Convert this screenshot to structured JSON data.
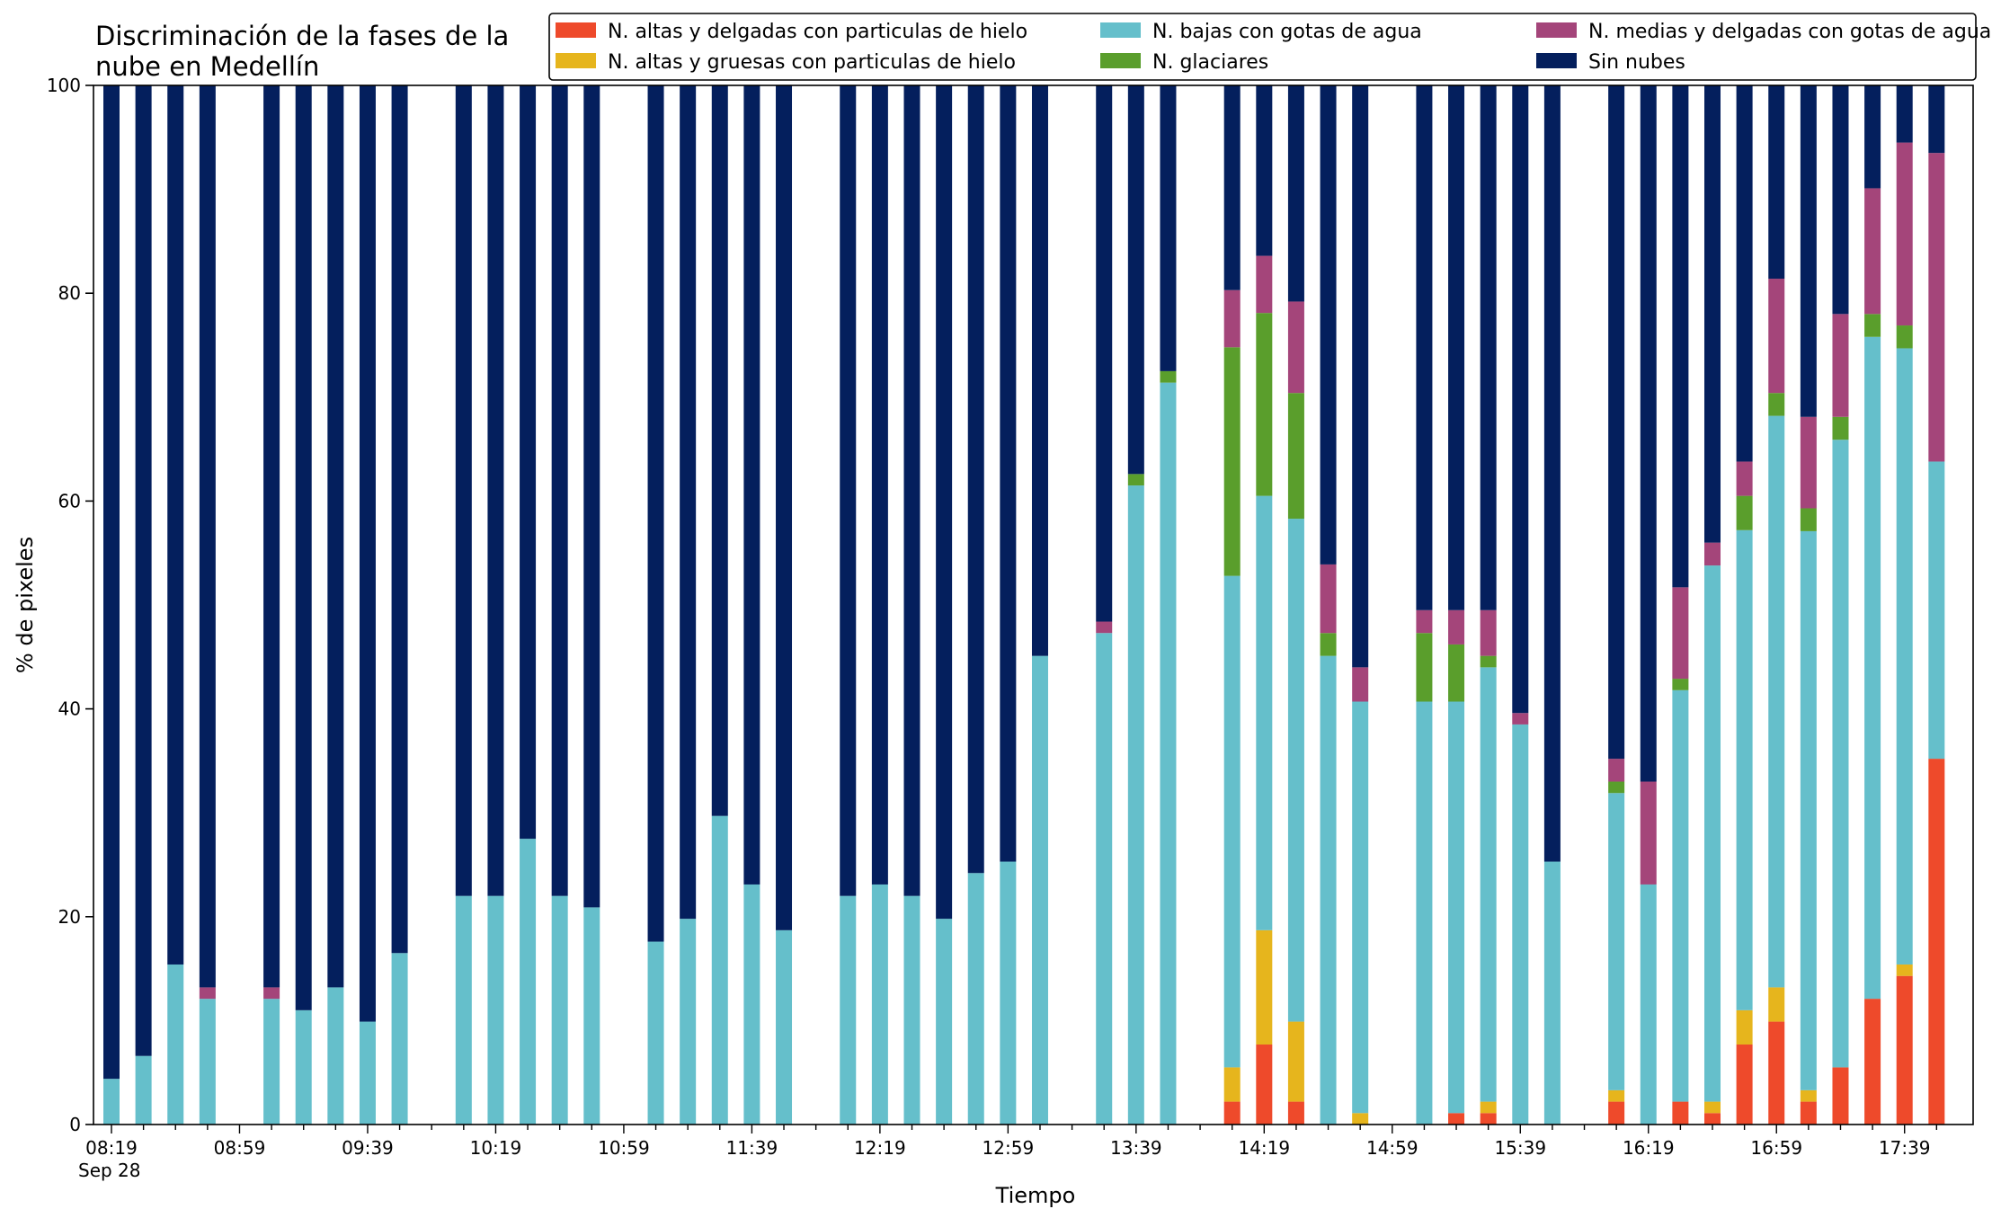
{
  "chart_data": {
    "type": "bar",
    "stacked": true,
    "title": "Discriminación de la fases de la nube en Medellín",
    "title_lines": [
      "Discriminación de la fases de la",
      "nube en Medellín"
    ],
    "xlabel": "Tiempo",
    "ylabel": "% de pixeles",
    "ylim": [
      0,
      100
    ],
    "yticks": [
      0,
      20,
      40,
      60,
      80,
      100
    ],
    "x_start": "08:19",
    "x_step_minutes": 10,
    "x_count": 58,
    "xtick_labels": [
      "08:19",
      "08:59",
      "09:39",
      "10:19",
      "10:59",
      "11:39",
      "12:19",
      "12:59",
      "13:39",
      "14:19",
      "14:59",
      "15:39",
      "16:19",
      "16:59",
      "17:39"
    ],
    "xtick_sublabel": "Sep 28",
    "legend_position": "top",
    "grid": false,
    "series": [
      {
        "name": "N. altas y delgadas con particulas de hielo",
        "color": "#ee4a2b",
        "values": [
          0,
          0,
          0,
          0,
          null,
          0,
          0,
          0,
          0,
          0,
          null,
          0,
          0,
          0,
          0,
          0,
          null,
          0,
          0,
          0,
          0,
          0,
          null,
          0,
          0,
          0,
          0,
          0,
          0,
          0,
          null,
          0,
          0,
          0,
          null,
          2.2,
          7.7,
          2.2,
          0,
          0,
          null,
          0,
          1.1,
          1.1,
          0,
          0,
          null,
          2.2,
          0,
          2.2,
          1.1,
          7.7,
          9.9,
          2.2,
          5.5,
          12.1,
          14.3,
          35.2
        ]
      },
      {
        "name": "N. altas y gruesas con particulas de hielo",
        "color": "#e6b51d",
        "values": [
          0,
          0,
          0,
          0,
          null,
          0,
          0,
          0,
          0,
          0,
          null,
          0,
          0,
          0,
          0,
          0,
          null,
          0,
          0,
          0,
          0,
          0,
          null,
          0,
          0,
          0,
          0,
          0,
          0,
          0,
          null,
          0,
          0,
          0,
          null,
          3.3,
          11,
          7.7,
          0,
          1.1,
          null,
          0,
          0,
          1.1,
          0,
          0,
          null,
          1.1,
          0,
          0,
          1.1,
          3.3,
          3.3,
          1.1,
          0,
          0,
          1.1,
          0
        ]
      },
      {
        "name": "N. bajas con gotas de agua",
        "color": "#65bfcb",
        "values": [
          4.4,
          6.6,
          15.4,
          12.1,
          null,
          12.1,
          11,
          13.2,
          9.9,
          16.5,
          null,
          22,
          22,
          27.5,
          22,
          20.9,
          null,
          17.6,
          19.8,
          29.7,
          23.1,
          18.7,
          null,
          22,
          23.1,
          22,
          19.8,
          24.2,
          25.3,
          45.1,
          null,
          47.3,
          61.5,
          71.4,
          null,
          47.3,
          41.8,
          48.4,
          45.1,
          39.6,
          null,
          40.7,
          39.6,
          41.8,
          38.5,
          25.3,
          null,
          28.6,
          23.1,
          39.6,
          51.6,
          46.2,
          55,
          53.8,
          60.4,
          63.7,
          59.3,
          28.6
        ]
      },
      {
        "name": "N. glaciares",
        "color": "#5a9e2c",
        "values": [
          0,
          0,
          0,
          0,
          null,
          0,
          0,
          0,
          0,
          0,
          null,
          0,
          0,
          0,
          0,
          0,
          null,
          0,
          0,
          0,
          0,
          0,
          null,
          0,
          0,
          0,
          0,
          0,
          0,
          0,
          null,
          0,
          1.1,
          1.1,
          null,
          22,
          17.6,
          12.1,
          2.2,
          0,
          null,
          6.6,
          5.5,
          1.1,
          0,
          0,
          null,
          1.1,
          0,
          1.1,
          0,
          3.3,
          2.2,
          2.2,
          2.2,
          2.2,
          2.2,
          0
        ]
      },
      {
        "name": "N. medias y delgadas con gotas de agua",
        "color": "#a4457a",
        "values": [
          0,
          0,
          0,
          1.1,
          null,
          1.1,
          0,
          0,
          0,
          0,
          null,
          0,
          0,
          0,
          0,
          0,
          null,
          0,
          0,
          0,
          0,
          0,
          null,
          0,
          0,
          0,
          0,
          0,
          0,
          0,
          null,
          1.1,
          0,
          0,
          null,
          5.5,
          5.5,
          8.8,
          6.6,
          3.3,
          null,
          2.2,
          3.3,
          4.4,
          1.1,
          0,
          null,
          2.2,
          9.9,
          8.8,
          2.2,
          3.3,
          11,
          8.8,
          9.9,
          12.1,
          17.6,
          29.7
        ]
      },
      {
        "name": "Sin nubes",
        "color": "#041f5d",
        "values": [
          95.6,
          93.4,
          84.6,
          86.8,
          null,
          86.8,
          89,
          86.8,
          90.1,
          83.5,
          null,
          78,
          78,
          72.5,
          78,
          79.1,
          null,
          82.4,
          80.2,
          70.3,
          76.9,
          81.3,
          null,
          78,
          76.9,
          78,
          80.2,
          75.8,
          74.7,
          54.9,
          null,
          51.6,
          37.4,
          27.5,
          null,
          19.7,
          16.4,
          20.8,
          46.1,
          56,
          null,
          50.5,
          50.5,
          50.5,
          60.4,
          74.7,
          null,
          64.8,
          67,
          48.3,
          44,
          36.2,
          18.6,
          31.9,
          22,
          9.9,
          5.5,
          6.5
        ]
      }
    ]
  }
}
